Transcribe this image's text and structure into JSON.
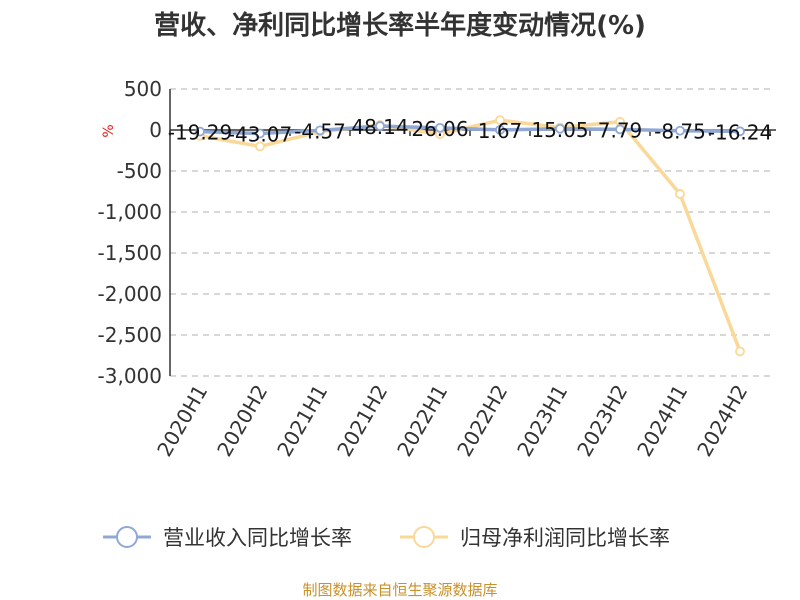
{
  "chart_data": {
    "type": "line",
    "title": "营收、净利同比增长率半年度变动情况(%)",
    "y_unit": "%",
    "categories": [
      "2020H1",
      "2020H2",
      "2021H1",
      "2021H2",
      "2022H1",
      "2022H2",
      "2023H1",
      "2023H2",
      "2024H1",
      "2024H2"
    ],
    "ylim": [
      -3000,
      500
    ],
    "yticks": [
      500,
      0,
      -500,
      -1000,
      -1500,
      -2000,
      -2500,
      -3000
    ],
    "ytick_labels": [
      "500",
      "0",
      "-500",
      "-1,000",
      "-1,500",
      "-2,000",
      "-2,500",
      "-3,000"
    ],
    "grid": true,
    "legend_position": "bottom",
    "series": [
      {
        "name": "营业收入同比增长率",
        "color": "#8fa8d6",
        "values": [
          -19.29,
          -43.07,
          -4.57,
          48.14,
          26.06,
          1.67,
          15.05,
          7.79,
          -8.75,
          -16.24
        ],
        "labels": [
          "-19.29",
          "-43.07",
          "-4.57",
          "48.14",
          "26.06",
          "1.67",
          "15.05",
          "7.79",
          "-8.75",
          "-16.24"
        ]
      },
      {
        "name": "归母净利润同比增长率",
        "color": "#fad898",
        "values": [
          -70,
          -200,
          -20,
          60,
          -50,
          120,
          30,
          100,
          -780,
          -2700
        ]
      }
    ]
  },
  "source": "制图数据来自恒生聚源数据库"
}
